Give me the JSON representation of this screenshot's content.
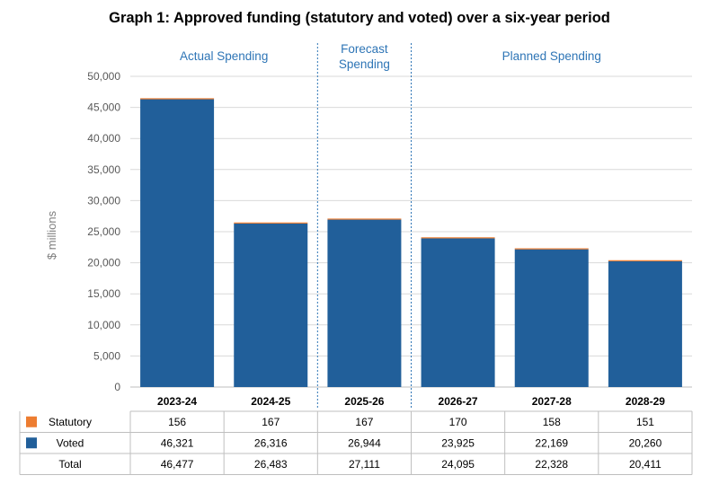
{
  "colors": {
    "statutory": "#ED7D31",
    "voted": "#215F9A",
    "section_label": "#2E75B6",
    "grid": "#D9D9D9",
    "divider": "#2E75B6",
    "table_border": "#BFBFBF"
  },
  "chart_data": {
    "type": "bar",
    "stacked": true,
    "title": "Graph 1: Approved funding (statutory and voted) over a six-year period",
    "xlabel": "",
    "ylabel": "$ millions",
    "ylim": [
      0,
      50000
    ],
    "yticks": [
      0,
      5000,
      10000,
      15000,
      20000,
      25000,
      30000,
      35000,
      40000,
      45000,
      50000
    ],
    "ytick_labels": [
      "0",
      "5,000",
      "10,000",
      "15,000",
      "20,000",
      "25,000",
      "30,000",
      "35,000",
      "40,000",
      "45,000",
      "50,000"
    ],
    "grid": true,
    "categories": [
      "2023-24",
      "2024-25",
      "2025-26",
      "2026-27",
      "2027-28",
      "2028-29"
    ],
    "sections": [
      {
        "label_lines": [
          "Actual Spending"
        ],
        "categories": [
          "2023-24",
          "2024-25"
        ]
      },
      {
        "label_lines": [
          "Forecast",
          "Spending"
        ],
        "categories": [
          "2025-26"
        ]
      },
      {
        "label_lines": [
          "Planned Spending"
        ],
        "categories": [
          "2026-27",
          "2027-28",
          "2028-29"
        ]
      }
    ],
    "series": [
      {
        "name": "Voted",
        "values": [
          46321,
          26316,
          26944,
          23925,
          22169,
          20260
        ]
      },
      {
        "name": "Statutory",
        "values": [
          156,
          167,
          167,
          170,
          158,
          151
        ]
      }
    ],
    "table": {
      "rows": [
        {
          "label": "Statutory",
          "legend": "statutory",
          "values": [
            "156",
            "167",
            "167",
            "170",
            "158",
            "151"
          ]
        },
        {
          "label": "Voted",
          "legend": "voted",
          "values": [
            "46,321",
            "26,316",
            "26,944",
            "23,925",
            "22,169",
            "20,260"
          ]
        },
        {
          "label": "Total",
          "legend": null,
          "values": [
            "46,477",
            "26,483",
            "27,111",
            "24,095",
            "22,328",
            "20,411"
          ]
        }
      ]
    }
  }
}
